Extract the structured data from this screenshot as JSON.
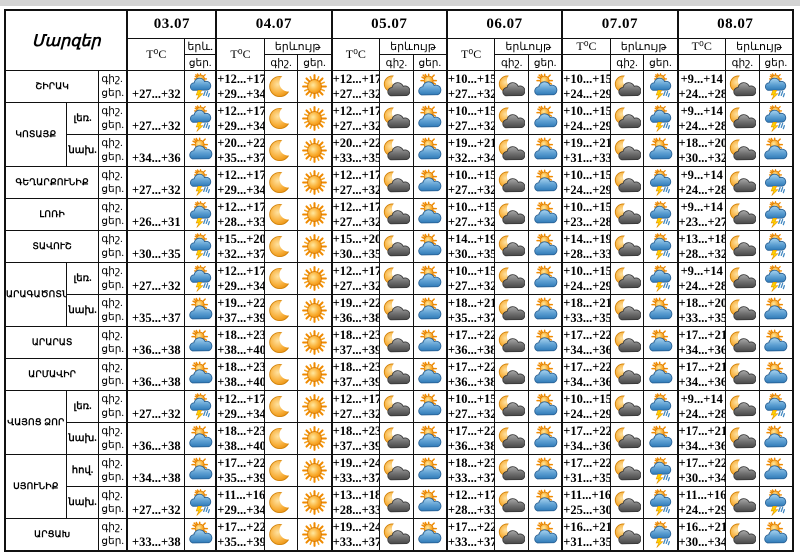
{
  "header": {
    "regions_label": "Մարզեր",
    "temp_label": "T⁰C",
    "phenomenon_label": "երևույթ",
    "phenomenon_short_label": "երև.",
    "night_label": "գիշ.",
    "day_label": "ցեր.",
    "dates": [
      "03.07",
      "04.07",
      "05.07",
      "06.07",
      "07.07",
      "08.07"
    ]
  },
  "colors": {
    "border": "#111111",
    "strip": "#d4d4d4",
    "sun": "#f59300",
    "cloud_blue": "#2f7ab8",
    "cloud_gray": "#4a4a4a",
    "lightning": "#ffd100"
  },
  "icon_names": [
    "storm",
    "sun",
    "moon",
    "sun_cloud",
    "moon_cloud"
  ],
  "rows": [
    {
      "region": "ՇԻՐԱԿ",
      "cells": [
        {
          "n": "",
          "d": "+27...+32",
          "ni": null,
          "di": "storm"
        },
        {
          "n": "+12...+17",
          "d": "+29...+34",
          "ni": "moon",
          "di": "sun"
        },
        {
          "n": "+12...+17",
          "d": "+27...+32",
          "ni": "moon_cloud",
          "di": "sun_cloud"
        },
        {
          "n": "+10...+15",
          "d": "+27...+32",
          "ni": "moon_cloud",
          "di": "sun_cloud"
        },
        {
          "n": "+10...+15",
          "d": "+24...+29",
          "ni": "moon_cloud",
          "di": "storm"
        },
        {
          "n": "+9...+14",
          "d": "+24...+28",
          "ni": "moon_cloud",
          "di": "storm"
        }
      ]
    },
    {
      "region": "ԿՈՏԱՅՔ",
      "rs": 2,
      "zone": "լեռ.",
      "cells": [
        {
          "n": "",
          "d": "+27...+32",
          "ni": null,
          "di": "storm"
        },
        {
          "n": "+12...+17",
          "d": "+29...+34",
          "ni": "moon",
          "di": "sun"
        },
        {
          "n": "+12...+17",
          "d": "+27...+32",
          "ni": "moon_cloud",
          "di": "sun_cloud"
        },
        {
          "n": "+10...+15",
          "d": "+27...+32",
          "ni": "moon_cloud",
          "di": "sun_cloud"
        },
        {
          "n": "+10...+15",
          "d": "+24...+29",
          "ni": "moon_cloud",
          "di": "storm"
        },
        {
          "n": "+9...+14",
          "d": "+24...+28",
          "ni": "moon_cloud",
          "di": "storm"
        }
      ]
    },
    {
      "zone": "նախ.",
      "cells": [
        {
          "n": "",
          "d": "+34...+36",
          "ni": null,
          "di": "sun_cloud"
        },
        {
          "n": "+20...+22",
          "d": "+35...+37",
          "ni": "moon",
          "di": "sun"
        },
        {
          "n": "+20...+22",
          "d": "+33...+35",
          "ni": "moon_cloud",
          "di": "sun_cloud"
        },
        {
          "n": "+19...+21",
          "d": "+32...+34",
          "ni": "moon_cloud",
          "di": "sun_cloud"
        },
        {
          "n": "+19...+21",
          "d": "+31...+33",
          "ni": "moon_cloud",
          "di": "sun_cloud"
        },
        {
          "n": "+18...+20",
          "d": "+30...+32",
          "ni": "moon_cloud",
          "di": "sun_cloud"
        }
      ]
    },
    {
      "region": "ԳԵՂԱՐՔՈՒՆԻՔ",
      "cells": [
        {
          "n": "",
          "d": "+27...+32",
          "ni": null,
          "di": "storm"
        },
        {
          "n": "+12...+17",
          "d": "+29...+34",
          "ni": "moon",
          "di": "sun"
        },
        {
          "n": "+12...+17",
          "d": "+27...+32",
          "ni": "moon_cloud",
          "di": "sun_cloud"
        },
        {
          "n": "+10...+15",
          "d": "+27...+32",
          "ni": "moon_cloud",
          "di": "sun_cloud"
        },
        {
          "n": "+10...+15",
          "d": "+24...+29",
          "ni": "moon_cloud",
          "di": "storm"
        },
        {
          "n": "+9...+14",
          "d": "+24...+28",
          "ni": "moon_cloud",
          "di": "storm"
        }
      ]
    },
    {
      "region": "ԼՈՌԻ",
      "cells": [
        {
          "n": "",
          "d": "+26...+31",
          "ni": null,
          "di": "storm"
        },
        {
          "n": "+12...+17",
          "d": "+28...+33",
          "ni": "moon",
          "di": "sun"
        },
        {
          "n": "+12...+17",
          "d": "+27...+32",
          "ni": "moon_cloud",
          "di": "sun_cloud"
        },
        {
          "n": "+10...+15",
          "d": "+27...+32",
          "ni": "moon_cloud",
          "di": "sun_cloud"
        },
        {
          "n": "+10...+15",
          "d": "+23...+28",
          "ni": "moon_cloud",
          "di": "storm"
        },
        {
          "n": "+9...+14",
          "d": "+23...+27",
          "ni": "moon_cloud",
          "di": "storm"
        }
      ]
    },
    {
      "region": "ՏԱՎՈՒՇ",
      "cells": [
        {
          "n": "",
          "d": "+30...+35",
          "ni": null,
          "di": "storm"
        },
        {
          "n": "+15...+20",
          "d": "+32...+37",
          "ni": "moon",
          "di": "sun"
        },
        {
          "n": "+15...+20",
          "d": "+30...+35",
          "ni": "moon_cloud",
          "di": "sun_cloud"
        },
        {
          "n": "+14...+19",
          "d": "+30...+35",
          "ni": "moon_cloud",
          "di": "sun_cloud"
        },
        {
          "n": "+14...+19",
          "d": "+28...+33",
          "ni": "moon_cloud",
          "di": "storm"
        },
        {
          "n": "+13...+18",
          "d": "+28...+32",
          "ni": "moon_cloud",
          "di": "storm"
        }
      ]
    },
    {
      "region": "ԱՐԱԳԱԾՈՏՆ",
      "rs": 2,
      "zone": "լեռ.",
      "cells": [
        {
          "n": "",
          "d": "+27...+32",
          "ni": null,
          "di": "storm"
        },
        {
          "n": "+12...+17",
          "d": "+29...+34",
          "ni": "moon",
          "di": "sun"
        },
        {
          "n": "+12...+17",
          "d": "+27...+32",
          "ni": "moon_cloud",
          "di": "sun_cloud"
        },
        {
          "n": "+10...+15",
          "d": "+27...+32",
          "ni": "moon_cloud",
          "di": "sun_cloud"
        },
        {
          "n": "+10...+15",
          "d": "+24...+29",
          "ni": "moon_cloud",
          "di": "storm"
        },
        {
          "n": "+9...+14",
          "d": "+24...+28",
          "ni": "moon_cloud",
          "di": "storm"
        }
      ]
    },
    {
      "zone": "նախ.",
      "cells": [
        {
          "n": "",
          "d": "+35...+37",
          "ni": null,
          "di": "sun_cloud"
        },
        {
          "n": "+19...+22",
          "d": "+37...+39",
          "ni": "moon",
          "di": "sun"
        },
        {
          "n": "+19...+22",
          "d": "+36...+38",
          "ni": "moon_cloud",
          "di": "sun_cloud"
        },
        {
          "n": "+18...+21",
          "d": "+35...+37",
          "ni": "moon_cloud",
          "di": "sun_cloud"
        },
        {
          "n": "+18...+21",
          "d": "+33...+35",
          "ni": "moon_cloud",
          "di": "sun_cloud"
        },
        {
          "n": "+18...+20",
          "d": "+33...+35",
          "ni": "moon_cloud",
          "di": "sun_cloud"
        }
      ]
    },
    {
      "region": "ԱՐԱՐԱՏ",
      "cells": [
        {
          "n": "",
          "d": "+36...+38",
          "ni": null,
          "di": "sun_cloud"
        },
        {
          "n": "+18...+23",
          "d": "+38...+40",
          "ni": "moon",
          "di": "sun"
        },
        {
          "n": "+18...+23",
          "d": "+37...+39",
          "ni": "moon_cloud",
          "di": "sun_cloud"
        },
        {
          "n": "+17...+22",
          "d": "+36...+38",
          "ni": "moon_cloud",
          "di": "sun_cloud"
        },
        {
          "n": "+17...+22",
          "d": "+34...+36",
          "ni": "moon_cloud",
          "di": "sun_cloud"
        },
        {
          "n": "+17...+21",
          "d": "+34...+36",
          "ni": "moon_cloud",
          "di": "sun_cloud"
        }
      ]
    },
    {
      "region": "ԱՐՄԱՎԻՐ",
      "cells": [
        {
          "n": "",
          "d": "+36...+38",
          "ni": null,
          "di": "sun_cloud"
        },
        {
          "n": "+18...+23",
          "d": "+38...+40",
          "ni": "moon",
          "di": "sun"
        },
        {
          "n": "+18...+23",
          "d": "+37...+39",
          "ni": "moon_cloud",
          "di": "sun_cloud"
        },
        {
          "n": "+17...+22",
          "d": "+36...+38",
          "ni": "moon_cloud",
          "di": "sun_cloud"
        },
        {
          "n": "+17...+22",
          "d": "+34...+36",
          "ni": "moon_cloud",
          "di": "sun_cloud"
        },
        {
          "n": "+17...+21",
          "d": "+34...+36",
          "ni": "moon_cloud",
          "di": "sun_cloud"
        }
      ]
    },
    {
      "region": "ՎԱՅՈՑ ՁՈՐ",
      "rs": 2,
      "zone": "լեռ.",
      "cells": [
        {
          "n": "",
          "d": "+27...+32",
          "ni": null,
          "di": "storm"
        },
        {
          "n": "+12...+17",
          "d": "+29...+34",
          "ni": "moon",
          "di": "sun"
        },
        {
          "n": "+12...+17",
          "d": "+27...+32",
          "ni": "moon_cloud",
          "di": "sun_cloud"
        },
        {
          "n": "+10...+15",
          "d": "+27...+32",
          "ni": "moon_cloud",
          "di": "sun_cloud"
        },
        {
          "n": "+10...+15",
          "d": "+24...+29",
          "ni": "moon_cloud",
          "di": "storm"
        },
        {
          "n": "+9...+14",
          "d": "+24...+28",
          "ni": "moon_cloud",
          "di": "storm"
        }
      ]
    },
    {
      "zone": "նախ.",
      "cells": [
        {
          "n": "",
          "d": "+36...+38",
          "ni": null,
          "di": "sun_cloud"
        },
        {
          "n": "+18...+23",
          "d": "+38...+40",
          "ni": "moon",
          "di": "sun"
        },
        {
          "n": "+18...+23",
          "d": "+37...+39",
          "ni": "moon_cloud",
          "di": "sun_cloud"
        },
        {
          "n": "+17...+22",
          "d": "+36...+38",
          "ni": "moon_cloud",
          "di": "sun_cloud"
        },
        {
          "n": "+17...+22",
          "d": "+34...+36",
          "ni": "moon_cloud",
          "di": "sun_cloud"
        },
        {
          "n": "+17...+21",
          "d": "+34...+36",
          "ni": "moon_cloud",
          "di": "sun_cloud"
        }
      ]
    },
    {
      "region": "ՍՅՈՒՆԻՔ",
      "rs": 2,
      "zone": "հով.",
      "cells": [
        {
          "n": "",
          "d": "+34...+38",
          "ni": null,
          "di": "sun_cloud"
        },
        {
          "n": "+17...+22",
          "d": "+35...+39",
          "ni": "moon",
          "di": "sun"
        },
        {
          "n": "+19...+24",
          "d": "+33...+37",
          "ni": "moon_cloud",
          "di": "sun_cloud"
        },
        {
          "n": "+18...+23",
          "d": "+33...+37",
          "ni": "moon_cloud",
          "di": "sun_cloud"
        },
        {
          "n": "+17...+22",
          "d": "+31...+35",
          "ni": "moon_cloud",
          "di": "storm"
        },
        {
          "n": "+17...+22",
          "d": "+30...+34",
          "ni": "moon_cloud",
          "di": "sun_cloud"
        }
      ]
    },
    {
      "zone": "նախ.",
      "cells": [
        {
          "n": "",
          "d": "+27...+32",
          "ni": null,
          "di": "storm"
        },
        {
          "n": "+11...+16",
          "d": "+29...+34",
          "ni": "moon",
          "di": "sun"
        },
        {
          "n": "+13...+18",
          "d": "+28...+33",
          "ni": "moon_cloud",
          "di": "sun_cloud"
        },
        {
          "n": "+12...+17",
          "d": "+28...+33",
          "ni": "moon_cloud",
          "di": "sun_cloud"
        },
        {
          "n": "+11...+16",
          "d": "+25...+30",
          "ni": "moon_cloud",
          "di": "storm"
        },
        {
          "n": "+11...+16",
          "d": "+24...+29",
          "ni": "moon_cloud",
          "di": "storm"
        }
      ]
    },
    {
      "region": "ԱՐՑԱԽ",
      "cells": [
        {
          "n": "",
          "d": "+33...+38",
          "ni": null,
          "di": "sun_cloud"
        },
        {
          "n": "+17...+22",
          "d": "+35...+39",
          "ni": "moon",
          "di": "sun"
        },
        {
          "n": "+19...+24",
          "d": "+33...+37",
          "ni": "moon_cloud",
          "di": "sun_cloud"
        },
        {
          "n": "+17...+22",
          "d": "+33...+37",
          "ni": "moon_cloud",
          "di": "sun_cloud"
        },
        {
          "n": "+16...+21",
          "d": "+31...+35",
          "ni": "moon_cloud",
          "di": "storm"
        },
        {
          "n": "+16...+21",
          "d": "+30...+34",
          "ni": "moon_cloud",
          "di": "sun_cloud"
        }
      ]
    }
  ]
}
